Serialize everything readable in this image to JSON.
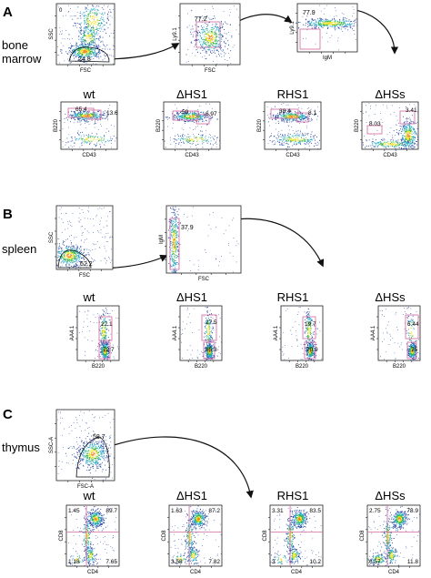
{
  "figure": {
    "panels": [
      {
        "letter": "A",
        "tissue": "bone marrow",
        "gating": [
          {
            "x_label": "FSC",
            "y_label": "SSC",
            "gate_value": "24.8",
            "corner_tag": "0"
          },
          {
            "x_label": "FSC",
            "y_label": "Ly9.1",
            "gate_value": "77.2"
          },
          {
            "x_label": "IgM",
            "y_label": "Ly9.1",
            "gate_value": "77.9"
          }
        ],
        "columns": [
          "wt",
          "ΔHS1",
          "RHS1",
          "ΔHSs"
        ],
        "plots": [
          {
            "x_label": "CD43",
            "y_label": "B220",
            "values": [
              "65.4",
              "13.6"
            ]
          },
          {
            "x_label": "CD43",
            "y_label": "B220",
            "values": [
              "59",
              "6.97"
            ]
          },
          {
            "x_label": "CD43",
            "y_label": "B220",
            "values": [
              "38.4",
              "8.1"
            ]
          },
          {
            "x_label": "CD43",
            "y_label": "B220",
            "values": [
              "3.41",
              "8.03"
            ]
          }
        ]
      },
      {
        "letter": "B",
        "tissue": "spleen",
        "gating": [
          {
            "x_label": "FSC",
            "y_label": "SSC",
            "gate_value": "62.2"
          },
          {
            "x_label": "FSC",
            "y_label": "IgM",
            "gate_value": "37.9"
          }
        ],
        "columns": [
          "wt",
          "ΔHS1",
          "RHS1",
          "ΔHSs"
        ],
        "plots": [
          {
            "x_label": "B220",
            "y_label": "AA4.1",
            "values": [
              "22.1",
              "72.7"
            ]
          },
          {
            "x_label": "B220",
            "y_label": "AA4.1",
            "values": [
              "27.5",
              "65.3"
            ]
          },
          {
            "x_label": "B220",
            "y_label": "AA4.1",
            "values": [
              "19.7",
              "70.9"
            ]
          },
          {
            "x_label": "B220",
            "y_label": "AA4.1",
            "values": [
              "6.44",
              "75"
            ]
          }
        ]
      },
      {
        "letter": "C",
        "tissue": "thymus",
        "gating": [
          {
            "x_label": "FSC-A",
            "y_label": "SSC-A",
            "gate_value": "58.7"
          }
        ],
        "columns": [
          "wt",
          "ΔHS1",
          "RHS1",
          "ΔHSs"
        ],
        "plots": [
          {
            "x_label": "CD4",
            "y_label": "CD8",
            "quadrants": {
              "tl": "1.45",
              "tr": "89.7",
              "bl": "1.18",
              "br": "7.65"
            }
          },
          {
            "x_label": "CD4",
            "y_label": "CD8",
            "quadrants": {
              "tl": "1.63",
              "tr": "87.2",
              "bl": "3.58",
              "br": "7.82"
            }
          },
          {
            "x_label": "CD4",
            "y_label": "CD8",
            "quadrants": {
              "tl": "3.31",
              "tr": "83.5",
              "bl": "3",
              "br": "10.2"
            }
          },
          {
            "x_label": "CD4",
            "y_label": "CD8",
            "quadrants": {
              "tl": "2.75",
              "tr": "78.9",
              "bl": "6.57",
              "br": "11.8"
            }
          }
        ]
      }
    ],
    "colors": {
      "gate": "#d2689e",
      "arrow": "#111111",
      "density": [
        "#1f3f9e",
        "#1fa8c8",
        "#39b54a",
        "#f2e11a",
        "#ee7d1e"
      ]
    }
  }
}
